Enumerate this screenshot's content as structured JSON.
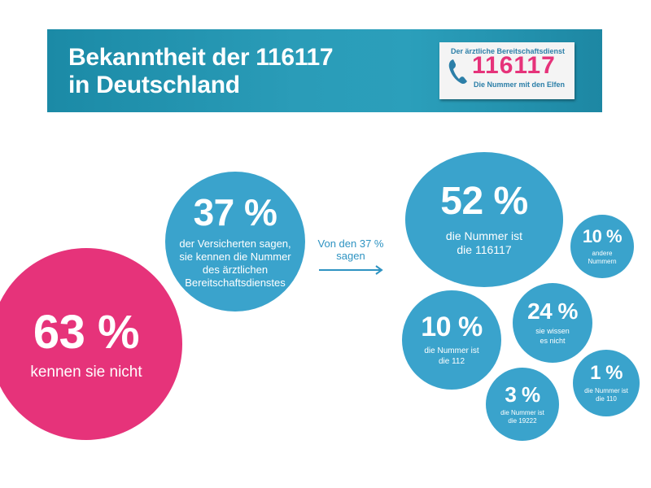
{
  "banner": {
    "title_line1": "Bekanntheit der 116117",
    "title_line2": "in Deutschland",
    "logo_top": "Der ärztliche Bereitschaftsdienst",
    "logo_number": "116117",
    "logo_bottom": "Die Nummer mit den Elfen"
  },
  "arrow_label_line1": "Von den 37 %",
  "arrow_label_line2": "sagen",
  "colors": {
    "banner": "#2a9cb8",
    "pink": "#e6337a",
    "blue": "#3aa3cc",
    "logo_number": "#e6337a"
  },
  "chart_data": [
    {
      "type": "bubble",
      "title": "Bekanntheit der 116117 in Deutschland",
      "values": [
        {
          "value": 63,
          "display": "63 %",
          "label": "kennen sie nicht"
        },
        {
          "value": 37,
          "display": "37 %",
          "label": "der Versicherten sagen, sie kennen die Nummer des ärztlichen Bereitschaftsdienstes"
        }
      ]
    },
    {
      "type": "bubble",
      "title": "Von den 37 % sagen",
      "values": [
        {
          "value": 52,
          "display": "52 %",
          "label_lines": [
            "die Nummer ist",
            "die 116117"
          ]
        },
        {
          "value": 10,
          "display": "10 %",
          "label_lines": [
            "andere",
            "Nummern"
          ]
        },
        {
          "value": 24,
          "display": "24 %",
          "label_lines": [
            "sie wissen",
            "es nicht"
          ]
        },
        {
          "value": 10,
          "display": "10 %",
          "label_lines": [
            "die Nummer ist",
            "die 112"
          ]
        },
        {
          "value": 1,
          "display": "1 %",
          "label_lines": [
            "die Nummer ist",
            "die 110"
          ]
        },
        {
          "value": 3,
          "display": "3 %",
          "label_lines": [
            "die Nummer ist",
            "die 19222"
          ]
        }
      ]
    }
  ],
  "main_labels": {
    "c37_lines": [
      "der Versicherten sagen,",
      "sie kennen die Nummer",
      "des ärztlichen",
      "Bereitschaftsdienstes"
    ]
  }
}
